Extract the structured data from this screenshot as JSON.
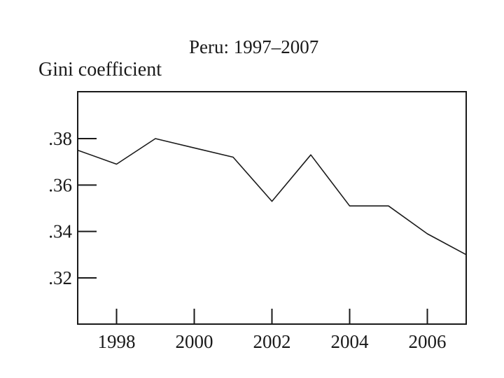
{
  "chart_data": {
    "type": "line",
    "title": "Peru: 1997–2007",
    "ylabel": "Gini coefficient",
    "xlabel": "",
    "x": [
      1997,
      1998,
      1999,
      2000,
      2001,
      2002,
      2003,
      2004,
      2005,
      2006,
      2007
    ],
    "series": [
      {
        "values": [
          0.375,
          0.369,
          0.38,
          0.376,
          0.372,
          0.353,
          0.373,
          0.351,
          0.351,
          0.339,
          0.33
        ]
      }
    ],
    "xlim": [
      1997,
      2007
    ],
    "ylim": [
      0.3,
      0.4
    ],
    "xticks": [
      "1998",
      "2000",
      "2002",
      "2004",
      "2006"
    ],
    "yticks": [
      ".32",
      ".34",
      ".36",
      ".38"
    ],
    "line_color": "#1a1a1a",
    "grid": false
  }
}
